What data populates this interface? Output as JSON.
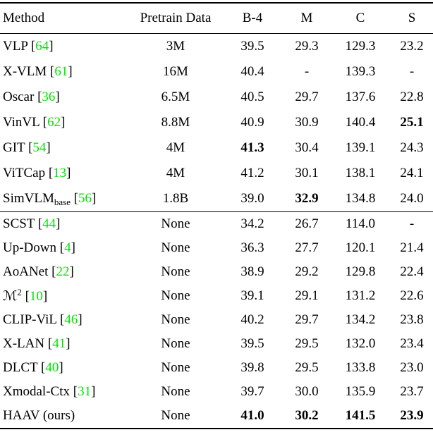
{
  "colors": {
    "citation_green": "#00e400",
    "text_black": "#000000",
    "background": "#ffffff"
  },
  "table": {
    "headers": [
      "Method",
      "Pretrain Data",
      "B-4",
      "M",
      "C",
      "S"
    ],
    "sections": [
      {
        "rows": [
          {
            "method": "VLP",
            "cite": "64",
            "cells": [
              {
                "v": "3M"
              },
              {
                "v": "39.5"
              },
              {
                "v": "29.3"
              },
              {
                "v": "129.3"
              },
              {
                "v": "23.2"
              }
            ]
          },
          {
            "method": "X-VLM",
            "cite": "61",
            "cells": [
              {
                "v": "16M"
              },
              {
                "v": "40.4"
              },
              {
                "v": "-"
              },
              {
                "v": "139.3"
              },
              {
                "v": "-"
              }
            ]
          },
          {
            "method": "Oscar",
            "cite": "36",
            "cells": [
              {
                "v": "6.5M"
              },
              {
                "v": "40.5"
              },
              {
                "v": "29.7"
              },
              {
                "v": "137.6"
              },
              {
                "v": "22.8"
              }
            ]
          },
          {
            "method": "VinVL",
            "cite": "62",
            "cells": [
              {
                "v": "8.8M"
              },
              {
                "v": "40.9"
              },
              {
                "v": "30.9"
              },
              {
                "v": "140.4"
              },
              {
                "v": "25.1",
                "bold": true
              }
            ]
          },
          {
            "method": "GIT",
            "cite": "54",
            "cells": [
              {
                "v": "4M"
              },
              {
                "v": "41.3",
                "bold": true
              },
              {
                "v": "30.4"
              },
              {
                "v": "139.1"
              },
              {
                "v": "24.3"
              }
            ]
          },
          {
            "method": "ViTCap",
            "cite": "13",
            "cells": [
              {
                "v": "4M"
              },
              {
                "v": "41.2"
              },
              {
                "v": "30.1"
              },
              {
                "v": "138.1"
              },
              {
                "v": "24.1"
              }
            ]
          },
          {
            "method": "SimVLM",
            "sub": "base",
            "cite": "56",
            "cells": [
              {
                "v": "1.8B"
              },
              {
                "v": "39.0"
              },
              {
                "v": "32.9",
                "bold": true
              },
              {
                "v": "134.8"
              },
              {
                "v": "24.0"
              }
            ]
          }
        ]
      },
      {
        "rows": [
          {
            "method": "SCST",
            "cite": "44",
            "cells": [
              {
                "v": "None"
              },
              {
                "v": "34.2"
              },
              {
                "v": "26.7"
              },
              {
                "v": "114.0"
              },
              {
                "v": "-"
              }
            ]
          },
          {
            "method": "Up-Down",
            "cite": "4",
            "cells": [
              {
                "v": "None"
              },
              {
                "v": "36.3"
              },
              {
                "v": "27.7"
              },
              {
                "v": "120.1"
              },
              {
                "v": "21.4"
              }
            ]
          },
          {
            "method": "AoANet",
            "cite": "22",
            "cells": [
              {
                "v": "None"
              },
              {
                "v": "38.9"
              },
              {
                "v": "29.2"
              },
              {
                "v": "129.8"
              },
              {
                "v": "22.4"
              }
            ]
          },
          {
            "method": "ℳ",
            "sup": "2",
            "cite": "10",
            "cells": [
              {
                "v": "None"
              },
              {
                "v": "39.1"
              },
              {
                "v": "29.1"
              },
              {
                "v": "131.2"
              },
              {
                "v": "22.6"
              }
            ]
          },
          {
            "method": "CLIP-ViL",
            "cite": "46",
            "cells": [
              {
                "v": "None"
              },
              {
                "v": "40.2"
              },
              {
                "v": "29.7"
              },
              {
                "v": "134.2"
              },
              {
                "v": "23.8"
              }
            ]
          },
          {
            "method": "X-LAN",
            "cite": "41",
            "cells": [
              {
                "v": "None"
              },
              {
                "v": "39.5"
              },
              {
                "v": "29.5"
              },
              {
                "v": "132.0"
              },
              {
                "v": "23.4"
              }
            ]
          },
          {
            "method": "DLCT",
            "cite": "40",
            "cells": [
              {
                "v": "None"
              },
              {
                "v": "39.8"
              },
              {
                "v": "29.5"
              },
              {
                "v": "133.8"
              },
              {
                "v": "23.0"
              }
            ]
          },
          {
            "method": "Xmodal-Ctx",
            "cite": "31",
            "cells": [
              {
                "v": "None"
              },
              {
                "v": "39.7"
              },
              {
                "v": "30.0"
              },
              {
                "v": "135.9"
              },
              {
                "v": "23.7"
              }
            ]
          },
          {
            "method": "HAAV (ours)",
            "cells": [
              {
                "v": "None"
              },
              {
                "v": "41.0",
                "bold": true
              },
              {
                "v": "30.2",
                "bold": true
              },
              {
                "v": "141.5",
                "bold": true
              },
              {
                "v": "23.9",
                "bold": true
              }
            ]
          }
        ]
      }
    ]
  }
}
